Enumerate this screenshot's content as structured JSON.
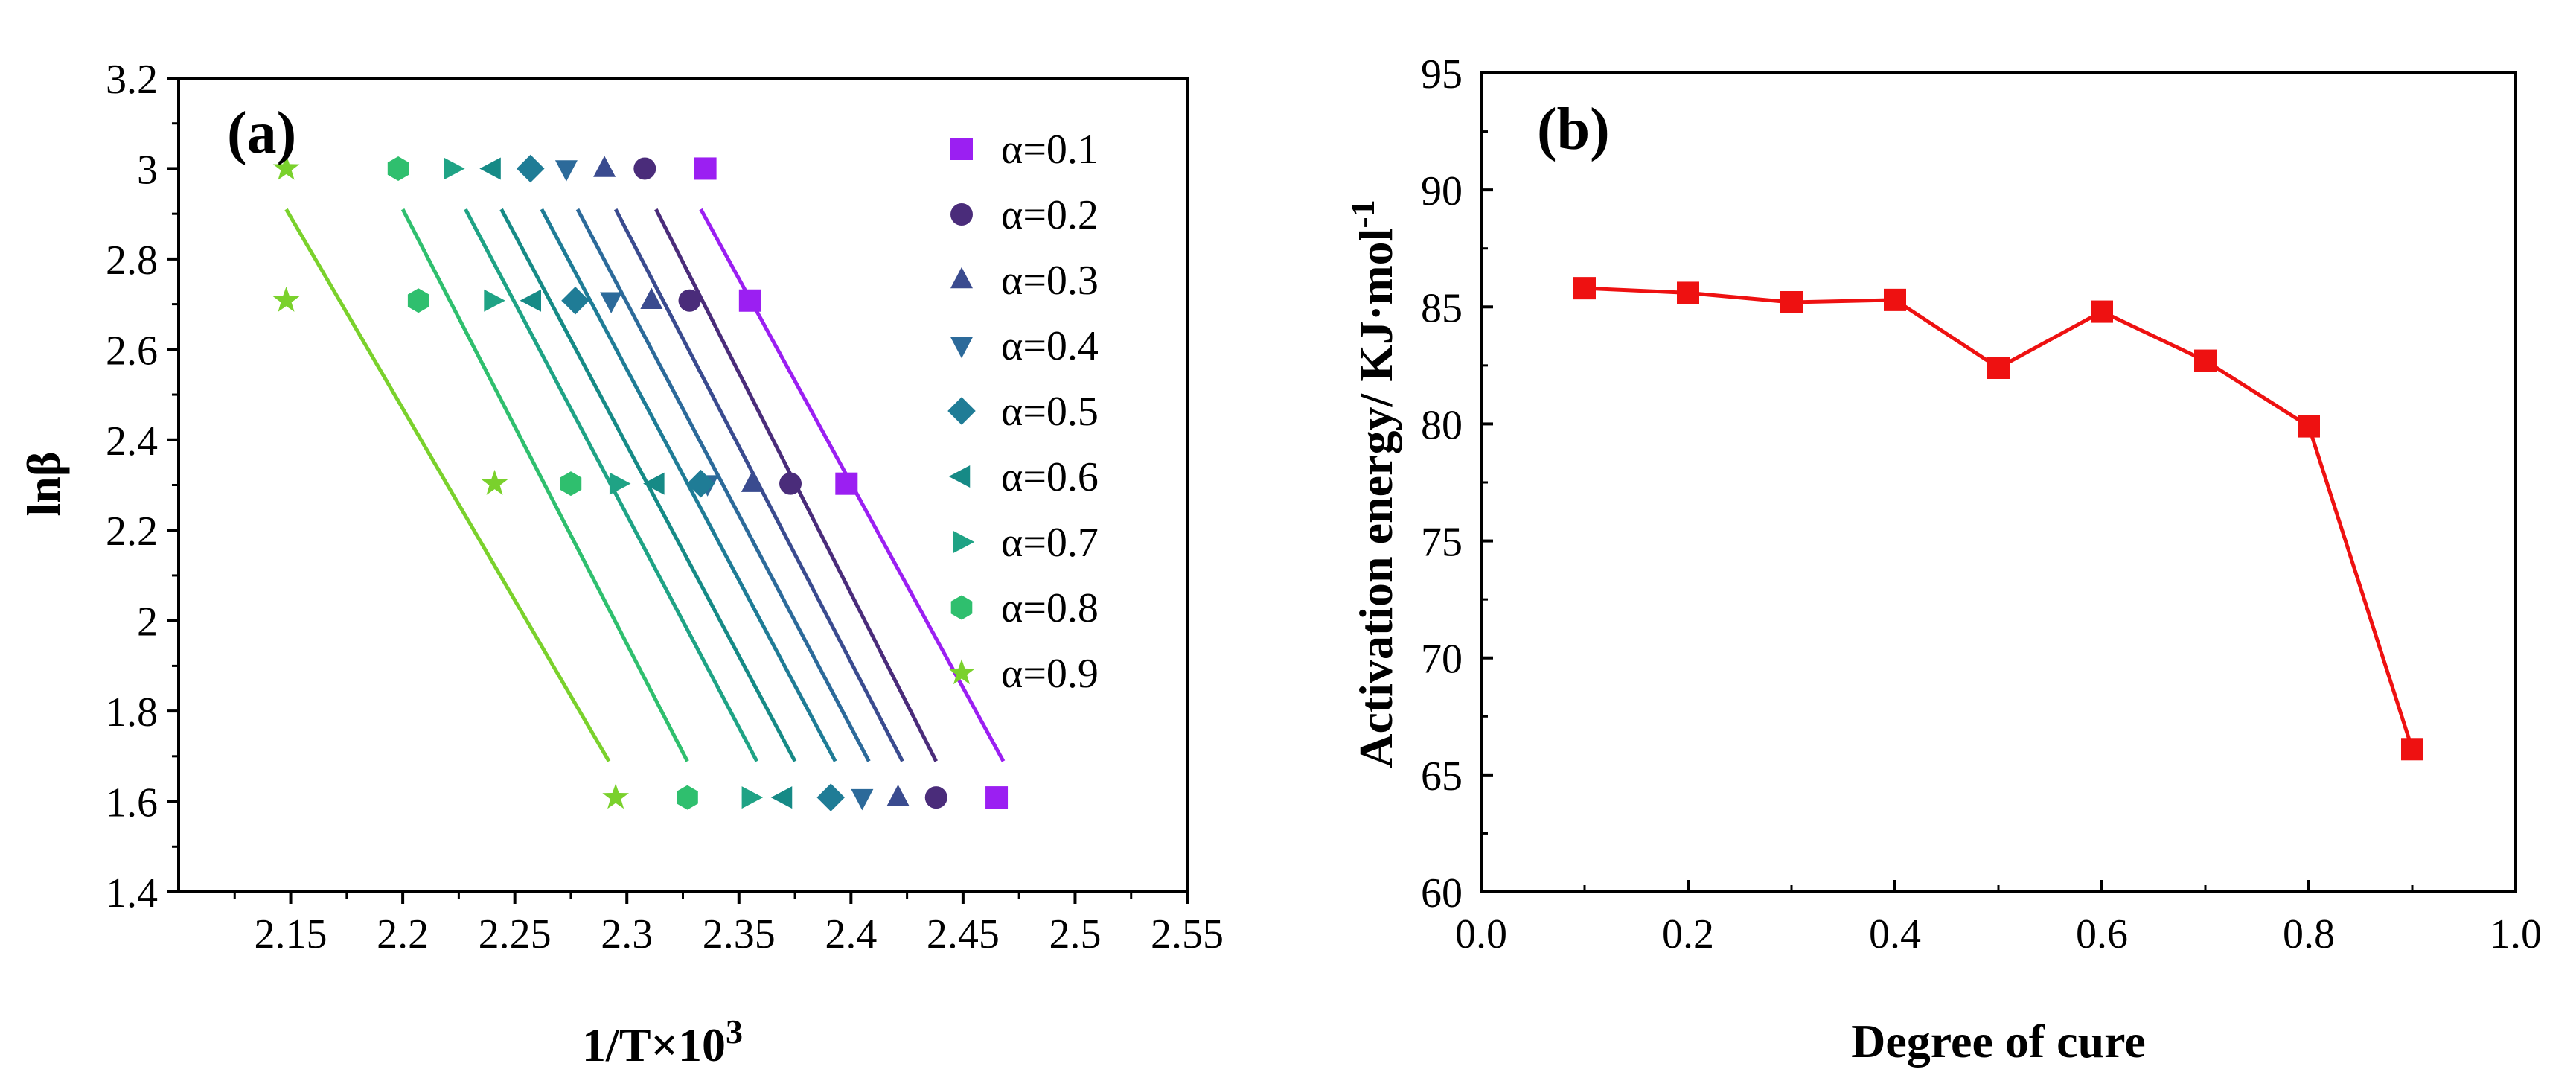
{
  "chart_data": [
    {
      "type": "scatter",
      "panel_label": "(a)",
      "xlabel": "1/T×10",
      "xlabel_sup": "3",
      "ylabel": "lnβ",
      "xlim": [
        2.1,
        2.55
      ],
      "ylim": [
        1.4,
        3.2
      ],
      "x_ticks": [
        2.15,
        2.2,
        2.25,
        2.3,
        2.35,
        2.4,
        2.45,
        2.5,
        2.55
      ],
      "y_ticks": [
        1.4,
        1.6,
        1.8,
        2.0,
        2.2,
        2.4,
        2.6,
        2.8,
        3.0,
        3.2
      ],
      "legend_position": "top-right",
      "y_levels": [
        3.0,
        2.708,
        2.303,
        1.609
      ],
      "series": [
        {
          "name": "α=0.1",
          "marker": "square",
          "color": "#9b1ff2",
          "x": [
            2.335,
            2.355,
            2.398,
            2.465
          ],
          "fit_x": [
            2.333,
            2.468
          ]
        },
        {
          "name": "α=0.2",
          "marker": "circle",
          "color": "#4a2c7a",
          "x": [
            2.308,
            2.328,
            2.373,
            2.438
          ],
          "fit_x": [
            2.313,
            2.438
          ]
        },
        {
          "name": "α=0.3",
          "marker": "triangle-up",
          "color": "#3a4b8f",
          "x": [
            2.29,
            2.311,
            2.356,
            2.421
          ],
          "fit_x": [
            2.295,
            2.423
          ]
        },
        {
          "name": "α=0.4",
          "marker": "triangle-down",
          "color": "#2c6a9a",
          "x": [
            2.273,
            2.293,
            2.336,
            2.405
          ],
          "fit_x": [
            2.278,
            2.408
          ]
        },
        {
          "name": "α=0.5",
          "marker": "diamond",
          "color": "#1f7c96",
          "x": [
            2.257,
            2.277,
            2.333,
            2.391
          ],
          "fit_x": [
            2.262,
            2.393
          ]
        },
        {
          "name": "α=0.6",
          "marker": "triangle-left",
          "color": "#168a86",
          "x": [
            2.24,
            2.258,
            2.313,
            2.37
          ],
          "fit_x": [
            2.244,
            2.375
          ]
        },
        {
          "name": "α=0.7",
          "marker": "triangle-right",
          "color": "#1fa385",
          "x": [
            2.222,
            2.24,
            2.296,
            2.355
          ],
          "fit_x": [
            2.228,
            2.358
          ]
        },
        {
          "name": "α=0.8",
          "marker": "hexagon",
          "color": "#2fbf6e",
          "x": [
            2.198,
            2.207,
            2.275,
            2.327
          ],
          "fit_x": [
            2.2,
            2.327
          ]
        },
        {
          "name": "α=0.9",
          "marker": "star",
          "color": "#7ad12c",
          "x": [
            2.148,
            2.148,
            2.241,
            2.295
          ],
          "fit_x": [
            2.148,
            2.292
          ]
        }
      ]
    },
    {
      "type": "line",
      "panel_label": "(b)",
      "xlabel": "Degree of cure",
      "ylabel": "Activation energy/ KJ·mol",
      "ylabel_sup": "-1",
      "xlim": [
        0.0,
        1.0
      ],
      "ylim": [
        60,
        95
      ],
      "x_ticks": [
        "0.0",
        "0.2",
        "0.4",
        "0.6",
        "0.8",
        "1.0"
      ],
      "y_ticks": [
        "60",
        "65",
        "70",
        "75",
        "80",
        "85",
        "90",
        "95"
      ],
      "series": [
        {
          "name": "Activation energy",
          "color": "#ee1111",
          "marker": "square",
          "x": [
            0.1,
            0.2,
            0.3,
            0.4,
            0.5,
            0.6,
            0.7,
            0.8,
            0.9
          ],
          "y": [
            85.8,
            85.6,
            85.2,
            85.3,
            82.4,
            84.8,
            82.7,
            79.9,
            66.1
          ]
        }
      ]
    }
  ]
}
